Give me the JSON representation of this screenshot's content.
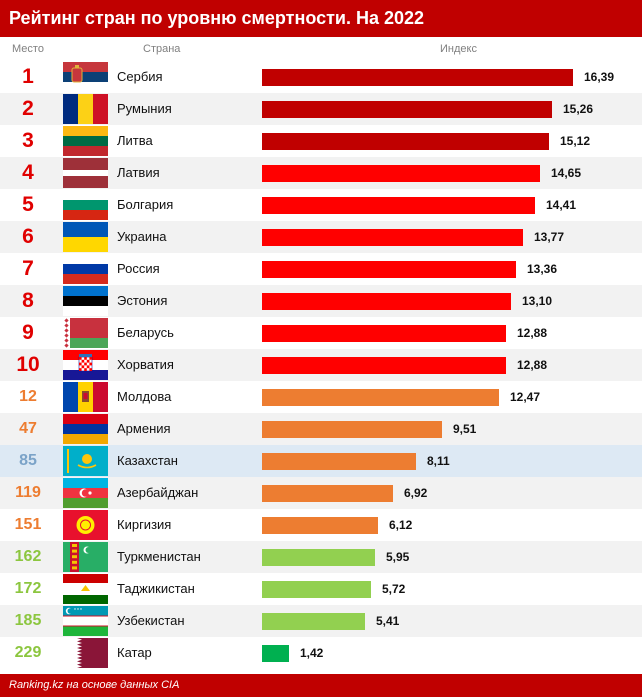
{
  "title": "Рейтинг стран по уровню смертности. На 2022",
  "columns": {
    "place": "Место",
    "country": "Страна",
    "index": "Индекс"
  },
  "source": "Ranking.kz на основе данных CIA",
  "colors": {
    "header": "#c00000",
    "bar_top10": "#ff0000",
    "bar_top3_dark": "#c00000",
    "bar_orange": "#ed7d31",
    "bar_green": "#92d050",
    "bar_qatar": "#00b050",
    "rank_red": "#e00000",
    "rank_orange": "#ed7d31",
    "rank_green": "#8cc63f",
    "rank_blue": "#7ba3c8",
    "highlight_row": "#dde9f4"
  },
  "chart_data": {
    "type": "bar",
    "orientation": "horizontal",
    "title": "Рейтинг стран по уровню смертности. На 2022",
    "xlabel": "Индекс",
    "ylabel": "Страна",
    "xlim": [
      0,
      18
    ],
    "value_format": "comma-decimal, 2 places",
    "rows": [
      {
        "rank": "1",
        "country": "Сербия",
        "value": 16.39,
        "label": "16,39",
        "flag": "serbia-flag-icon",
        "bar_color": "#c00000",
        "rank_color": "#e00000",
        "style": "normal"
      },
      {
        "rank": "2",
        "country": "Румыния",
        "value": 15.26,
        "label": "15,26",
        "flag": "romania-flag-icon",
        "bar_color": "#c00000",
        "rank_color": "#e00000",
        "style": "alt"
      },
      {
        "rank": "3",
        "country": "Литва",
        "value": 15.12,
        "label": "15,12",
        "flag": "lithuania-flag-icon",
        "bar_color": "#c00000",
        "rank_color": "#e00000",
        "style": "normal"
      },
      {
        "rank": "4",
        "country": "Латвия",
        "value": 14.65,
        "label": "14,65",
        "flag": "latvia-flag-icon",
        "bar_color": "#ff0000",
        "rank_color": "#e00000",
        "style": "alt"
      },
      {
        "rank": "5",
        "country": "Болгария",
        "value": 14.41,
        "label": "14,41",
        "flag": "bulgaria-flag-icon",
        "bar_color": "#ff0000",
        "rank_color": "#e00000",
        "style": "normal"
      },
      {
        "rank": "6",
        "country": "Украина",
        "value": 13.77,
        "label": "13,77",
        "flag": "ukraine-flag-icon",
        "bar_color": "#ff0000",
        "rank_color": "#e00000",
        "style": "alt"
      },
      {
        "rank": "7",
        "country": "Россия",
        "value": 13.36,
        "label": "13,36",
        "flag": "russia-flag-icon",
        "bar_color": "#ff0000",
        "rank_color": "#e00000",
        "style": "normal"
      },
      {
        "rank": "8",
        "country": "Эстония",
        "value": 13.1,
        "label": "13,10",
        "flag": "estonia-flag-icon",
        "bar_color": "#ff0000",
        "rank_color": "#e00000",
        "style": "alt"
      },
      {
        "rank": "9",
        "country": "Беларусь",
        "value": 12.88,
        "label": "12,88",
        "flag": "belarus-flag-icon",
        "bar_color": "#ff0000",
        "rank_color": "#e00000",
        "style": "normal"
      },
      {
        "rank": "10",
        "country": "Хорватия",
        "value": 12.88,
        "label": "12,88",
        "flag": "croatia-flag-icon",
        "bar_color": "#ff0000",
        "rank_color": "#e00000",
        "style": "alt"
      },
      {
        "rank": "12",
        "country": "Молдова",
        "value": 12.47,
        "label": "12,47",
        "flag": "moldova-flag-icon",
        "bar_color": "#ed7d31",
        "rank_color": "#ed7d31",
        "style": "normal"
      },
      {
        "rank": "47",
        "country": "Армения",
        "value": 9.51,
        "label": "9,51",
        "flag": "armenia-flag-icon",
        "bar_color": "#ed7d31",
        "rank_color": "#ed7d31",
        "style": "alt"
      },
      {
        "rank": "85",
        "country": "Казахстан",
        "value": 8.11,
        "label": "8,11",
        "flag": "kazakhstan-flag-icon",
        "bar_color": "#ed7d31",
        "rank_color": "#7ba3c8",
        "style": "highlight"
      },
      {
        "rank": "119",
        "country": "Азербайджан",
        "value": 6.92,
        "label": "6,92",
        "flag": "azerbaijan-flag-icon",
        "bar_color": "#ed7d31",
        "rank_color": "#ed7d31",
        "style": "alt"
      },
      {
        "rank": "151",
        "country": "Киргизия",
        "value": 6.12,
        "label": "6,12",
        "flag": "kyrgyzstan-flag-icon",
        "bar_color": "#ed7d31",
        "rank_color": "#ed7d31",
        "style": "normal"
      },
      {
        "rank": "162",
        "country": "Туркменистан",
        "value": 5.95,
        "label": "5,95",
        "flag": "turkmenistan-flag-icon",
        "bar_color": "#92d050",
        "rank_color": "#8cc63f",
        "style": "alt"
      },
      {
        "rank": "172",
        "country": "Таджикистан",
        "value": 5.72,
        "label": "5,72",
        "flag": "tajikistan-flag-icon",
        "bar_color": "#92d050",
        "rank_color": "#8cc63f",
        "style": "normal"
      },
      {
        "rank": "185",
        "country": "Узбекистан",
        "value": 5.41,
        "label": "5,41",
        "flag": "uzbekistan-flag-icon",
        "bar_color": "#92d050",
        "rank_color": "#8cc63f",
        "style": "alt"
      },
      {
        "rank": "229",
        "country": "Катар",
        "value": 1.42,
        "label": "1,42",
        "flag": "qatar-flag-icon",
        "bar_color": "#00b050",
        "rank_color": "#8cc63f",
        "style": "normal"
      }
    ]
  }
}
